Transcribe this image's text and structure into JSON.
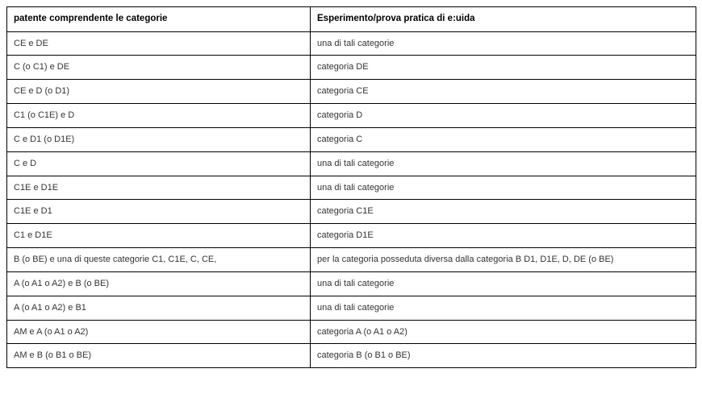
{
  "table": {
    "columns": [
      "patente comprendente le categorie",
      "Esperimento/prova pratica di e:uida"
    ],
    "rows": [
      [
        "CE e DE",
        "una di tali categorie"
      ],
      [
        "C (o C1) e DE",
        "categoria DE"
      ],
      [
        "CE e D (o D1)",
        "categoria CE"
      ],
      [
        "C1 (o C1E) e D",
        "categoria D"
      ],
      [
        "C e D1 (o D1E)",
        "categoria C"
      ],
      [
        "C e D",
        "una di tali categorie"
      ],
      [
        "C1E e D1E",
        "una di tali categorie"
      ],
      [
        "C1E e D1",
        "categoria C1E"
      ],
      [
        "C1 e D1E",
        "categoria D1E"
      ],
      [
        "B (o BE) e una di queste categorie C1, C1E, C, CE,",
        "per la categoria posseduta diversa dalla categoria B D1, D1E, D, DE (o BE)"
      ],
      [
        "A (o A1 o A2) e B (o BE)",
        "una di tali categorie"
      ],
      [
        "A (o A1 o A2) e B1",
        "una di tali categorie"
      ],
      [
        "AM e A (o A1 o A2)",
        "categoria A (o A1 o A2)"
      ],
      [
        "AM e B (o B1 o BE)",
        "categoria B (o B1 o BE)"
      ]
    ]
  }
}
